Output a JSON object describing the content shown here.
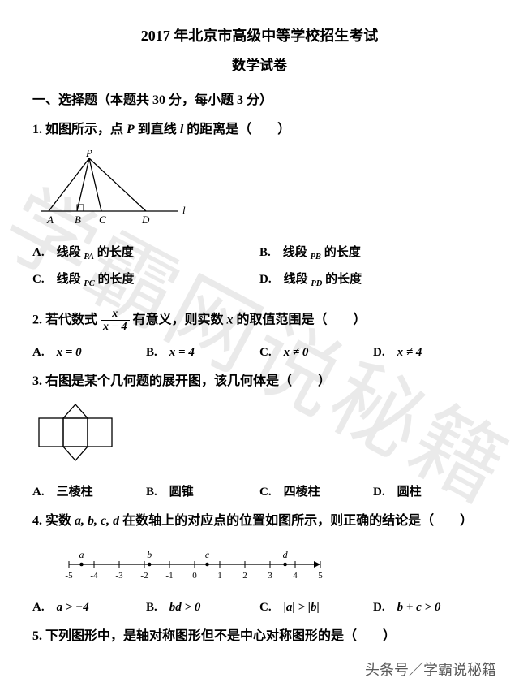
{
  "header": {
    "title": "2017 年北京市高级中等学校招生考试",
    "subtitle": "数学试卷"
  },
  "section1": {
    "heading": "一、选择题（本题共 30 分，每小题 3 分）"
  },
  "q1": {
    "stem_pre": "1. 如图所示，点 ",
    "stem_var": "P",
    "stem_mid": " 到直线 ",
    "stem_var2": "l",
    "stem_post": " 的距离是（　　）",
    "figure": {
      "P": "P",
      "A": "A",
      "B": "B",
      "C": "C",
      "D": "D",
      "l": "l",
      "stroke": "#000000"
    },
    "optA_pre": "A.　线段 ",
    "optA_var": "PA",
    "optA_post": " 的长度",
    "optB_pre": "B.　线段 ",
    "optB_var": "PB",
    "optB_post": " 的长度",
    "optC_pre": "C.　线段 ",
    "optC_var": "PC",
    "optC_post": " 的长度",
    "optD_pre": "D.　线段 ",
    "optD_var": "PD",
    "optD_post": " 的长度"
  },
  "q2": {
    "stem_pre": "2. 若代数式 ",
    "frac_num": "x",
    "frac_den": "x − 4",
    "stem_mid": " 有意义，则实数 ",
    "stem_var": "x",
    "stem_post": " 的取值范围是（　　）",
    "optA": "A.　",
    "optA_math": "x = 0",
    "optB": "B.　",
    "optB_math": "x = 4",
    "optC": "C.　",
    "optC_math": "x ≠ 0",
    "optD": "D.　",
    "optD_math": "x ≠ 4"
  },
  "q3": {
    "stem": "3. 右图是某个几何题的展开图，该几何体是（　　）",
    "figure": {
      "stroke": "#000000"
    },
    "optA": "A.　三棱柱",
    "optB": "B.　圆锥",
    "optC": "C.　四棱柱",
    "optD": "D.　圆柱"
  },
  "q4": {
    "stem_pre": "4. 实数 ",
    "stem_vars": "a, b, c, d",
    "stem_post": " 在数轴上的对应点的位置如图所示，则正确的结论是（　　）",
    "numberline": {
      "ticks": [
        -5,
        -4,
        -3,
        -2,
        -1,
        0,
        1,
        2,
        3,
        4,
        5
      ],
      "points": {
        "a": -4.5,
        "b": -1.8,
        "c": 0.5,
        "d": 3.6
      },
      "stroke": "#000000"
    },
    "optA": "A.　",
    "optA_math": "a > −4",
    "optB": "B.　",
    "optB_math": "bd > 0",
    "optC": "C.　",
    "optC_math": "|a| > |b|",
    "optD": "D.　",
    "optD_math": "b + c > 0"
  },
  "q5": {
    "stem": "5. 下列图形中，是轴对称图形但不是中心对称图形的是（　　）"
  },
  "watermark": "学霸网说秘籍",
  "footer": "头条号／学霸说秘籍"
}
